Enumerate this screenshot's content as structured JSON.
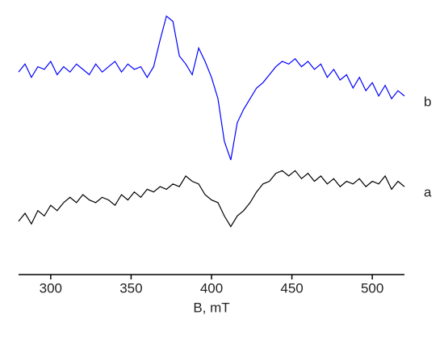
{
  "chart_data": {
    "type": "line",
    "xlabel": "B, mT",
    "x": [
      280,
      284,
      288,
      292,
      296,
      300,
      304,
      308,
      312,
      316,
      320,
      324,
      328,
      332,
      336,
      340,
      344,
      348,
      352,
      356,
      360,
      364,
      368,
      372,
      376,
      380,
      384,
      388,
      392,
      396,
      400,
      404,
      408,
      412,
      416,
      420,
      424,
      428,
      432,
      436,
      440,
      444,
      448,
      452,
      456,
      460,
      464,
      468,
      472,
      476,
      480,
      484,
      488,
      492,
      496,
      500,
      504,
      508,
      512,
      516,
      520
    ],
    "series": [
      {
        "name": "b",
        "color": "#0000ff",
        "values": [
          76,
          79,
          74,
          78,
          77,
          80,
          75,
          78,
          76,
          79,
          77,
          75,
          79,
          76,
          78,
          80,
          76,
          79,
          77,
          78,
          74,
          78,
          88,
          97,
          95,
          82,
          79,
          75,
          85,
          80,
          74,
          66,
          50,
          43,
          57,
          62,
          66,
          70,
          72,
          75,
          78,
          80,
          79,
          81,
          78,
          80,
          77,
          79,
          74,
          77,
          73,
          75,
          70,
          74,
          69,
          72,
          67,
          71,
          66,
          69,
          67
        ]
      },
      {
        "name": "a",
        "color": "#000000",
        "values": [
          20,
          23,
          19,
          24,
          22,
          26,
          24,
          27,
          29,
          27,
          30,
          28,
          27,
          29,
          28,
          26,
          30,
          28,
          31,
          29,
          32,
          31,
          33,
          32,
          34,
          33,
          37,
          35,
          34,
          30,
          28,
          27,
          22,
          18,
          22,
          24,
          27,
          31,
          34,
          35,
          38,
          39,
          37,
          39,
          36,
          38,
          35,
          37,
          34,
          36,
          33,
          35,
          34,
          36,
          33,
          35,
          34,
          37,
          32,
          35,
          33
        ]
      }
    ],
    "xlim": [
      280,
      520
    ],
    "xticks": [
      300,
      350,
      400,
      450,
      500
    ],
    "ylim": [
      0,
      100
    ]
  }
}
